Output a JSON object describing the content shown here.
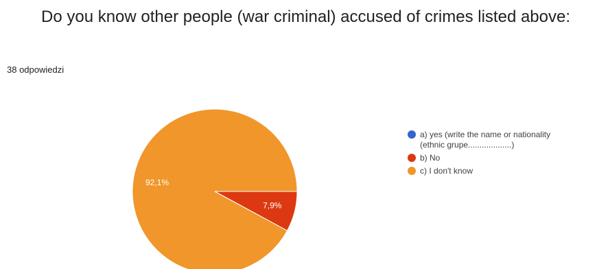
{
  "question": {
    "title": "Do you know other people (war criminal) accused of crimes listed above:",
    "responses": "38 odpowiedzi"
  },
  "colors": {
    "yes": "#3366cc",
    "no": "#dc3912",
    "dont_know": "#f0962a"
  },
  "chart_data": {
    "type": "pie",
    "categories": [
      "a) yes (write the name or nationality\n(ethnic grupe...................)",
      "b) No",
      "c) I don't know"
    ],
    "values": [
      0,
      7.9,
      92.1
    ],
    "data_labels": [
      "",
      "7,9%",
      "92,1%"
    ],
    "colors": [
      "#3366cc",
      "#dc3912",
      "#f0962a"
    ],
    "legend_position": "right"
  }
}
